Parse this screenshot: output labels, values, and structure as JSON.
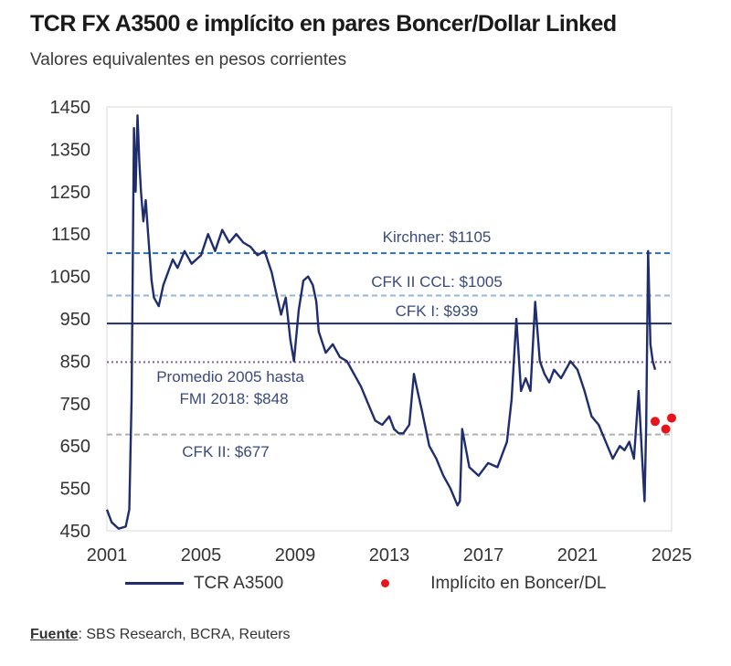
{
  "header": {
    "title": "TCR FX A3500 e implícito en pares Boncer/Dollar Linked",
    "subtitle": "Valores equivalentes en pesos corrientes"
  },
  "source": {
    "label": "Fuente",
    "text": ": SBS Research, BCRA, Reuters"
  },
  "colors": {
    "series": "#1f2d6e",
    "implicit": "#e8141c",
    "kirchner": "#2a6fb5",
    "cfk2ccl": "#8fb8dc",
    "cfk1": "#1f2d6e",
    "promedio": "#8a5aa6",
    "cfk2": "#b0b0b0"
  },
  "chart_data": {
    "type": "line",
    "title": "TCR FX A3500 e implícito en pares Boncer/Dollar Linked",
    "xlim": [
      2001,
      2025
    ],
    "ylim": [
      450,
      1450
    ],
    "xticks": [
      "2001",
      "2005",
      "2009",
      "2013",
      "2017",
      "2021",
      "2025"
    ],
    "yticks": [
      "450",
      "550",
      "650",
      "750",
      "850",
      "950",
      "1050",
      "1150",
      "1250",
      "1350",
      "1450"
    ],
    "legend": [
      {
        "label": "TCR A3500",
        "kind": "line"
      },
      {
        "label": "Implícito en Boncer/DL",
        "kind": "dot"
      }
    ],
    "reference_lines": [
      {
        "name": "kirchner",
        "value": 1105,
        "label": "Kirchner: $1105",
        "style": "dashed",
        "color": "#2a6fb5"
      },
      {
        "name": "cfk2ccl",
        "value": 1005,
        "label": "CFK II  CCL: $1005",
        "style": "dashed",
        "color": "#8fb8dc"
      },
      {
        "name": "cfk1",
        "value": 939,
        "label": "CFK I: $939",
        "style": "solid",
        "color": "#1f2d6e"
      },
      {
        "name": "promedio",
        "value": 848,
        "label_lines": [
          "Promedio 2005 hasta",
          "FMI 2018: $848"
        ],
        "style": "dotted",
        "color": "#8a5aa6"
      },
      {
        "name": "cfk2",
        "value": 677,
        "label": "CFK II:  $677",
        "style": "dashed",
        "color": "#b0b0b0"
      }
    ],
    "series": [
      {
        "name": "TCR A3500",
        "x": [
          2001.0,
          2001.2,
          2001.5,
          2001.8,
          2001.95,
          2002.05,
          2002.1,
          2002.15,
          2002.22,
          2002.3,
          2002.38,
          2002.45,
          2002.55,
          2002.65,
          2002.75,
          2002.9,
          2003.0,
          2003.2,
          2003.4,
          2003.6,
          2003.8,
          2004.0,
          2004.3,
          2004.6,
          2005.0,
          2005.3,
          2005.6,
          2005.9,
          2006.2,
          2006.5,
          2006.8,
          2007.1,
          2007.4,
          2007.7,
          2008.0,
          2008.2,
          2008.4,
          2008.6,
          2008.8,
          2008.95,
          2009.15,
          2009.35,
          2009.55,
          2009.75,
          2009.9,
          2010.0,
          2010.3,
          2010.6,
          2010.9,
          2011.2,
          2011.5,
          2011.8,
          2012.1,
          2012.4,
          2012.7,
          2013.0,
          2013.2,
          2013.4,
          2013.6,
          2013.85,
          2014.05,
          2014.2,
          2014.4,
          2014.7,
          2015.0,
          2015.3,
          2015.6,
          2015.9,
          2016.0,
          2016.1,
          2016.4,
          2016.8,
          2017.2,
          2017.6,
          2018.0,
          2018.2,
          2018.4,
          2018.6,
          2018.8,
          2019.0,
          2019.2,
          2019.4,
          2019.6,
          2019.8,
          2020.0,
          2020.3,
          2020.7,
          2021.0,
          2021.3,
          2021.6,
          2021.9,
          2022.2,
          2022.5,
          2022.8,
          2023.0,
          2023.2,
          2023.4,
          2023.6,
          2023.75,
          2023.85,
          2023.92,
          2024.0,
          2024.1,
          2024.2,
          2024.3
        ],
        "values": [
          500,
          470,
          455,
          460,
          500,
          760,
          1080,
          1400,
          1250,
          1430,
          1320,
          1250,
          1180,
          1230,
          1150,
          1040,
          1000,
          980,
          1030,
          1060,
          1090,
          1070,
          1110,
          1080,
          1100,
          1150,
          1110,
          1160,
          1130,
          1150,
          1130,
          1120,
          1100,
          1110,
          1060,
          1010,
          960,
          1000,
          900,
          850,
          970,
          1040,
          1050,
          1030,
          990,
          920,
          870,
          890,
          860,
          850,
          820,
          790,
          750,
          710,
          700,
          720,
          690,
          680,
          680,
          700,
          820,
          780,
          730,
          650,
          620,
          580,
          550,
          510,
          520,
          690,
          600,
          580,
          610,
          600,
          660,
          760,
          950,
          780,
          810,
          780,
          990,
          850,
          820,
          800,
          830,
          810,
          850,
          830,
          780,
          720,
          700,
          660,
          620,
          650,
          640,
          660,
          620,
          780,
          620,
          520,
          700,
          1110,
          890,
          850,
          830
        ]
      },
      {
        "name": "Implícito en Boncer/DL",
        "x": [
          2024.3,
          2024.75,
          2025.0
        ],
        "values": [
          708,
          690,
          716
        ]
      }
    ]
  }
}
